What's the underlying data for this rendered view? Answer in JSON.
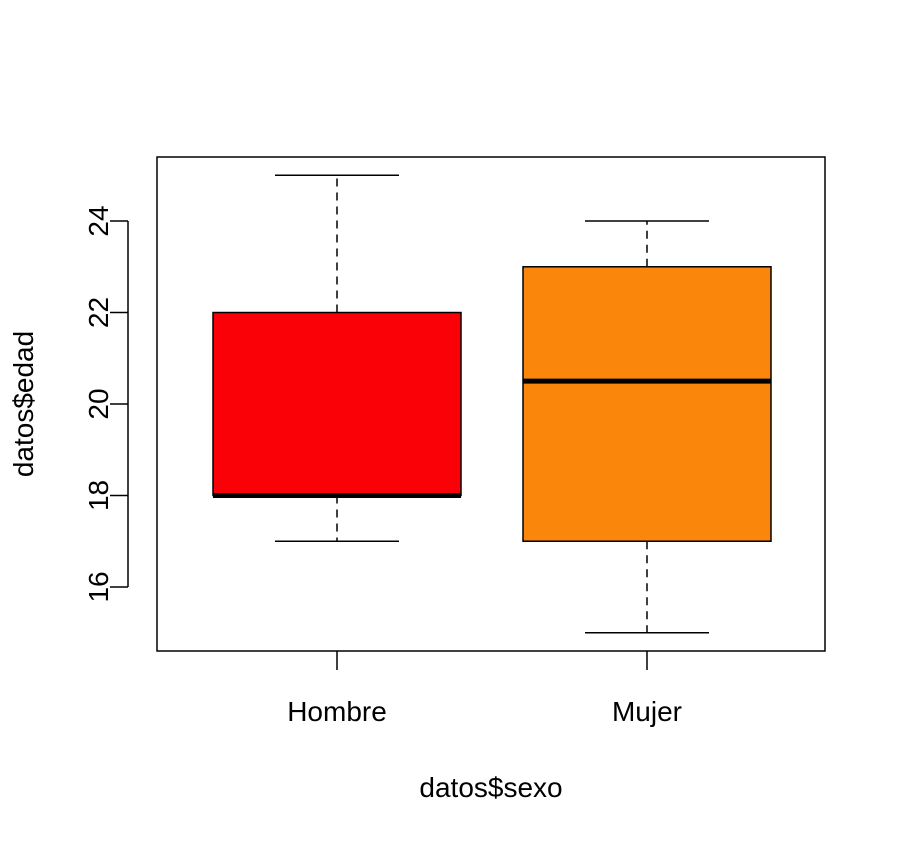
{
  "chart_data": {
    "type": "box",
    "title": "",
    "xlabel": "datos$sexo",
    "ylabel": "datos$edad",
    "ylim": [
      14.6,
      25.4
    ],
    "yticks": [
      16,
      18,
      20,
      22,
      24
    ],
    "grid": false,
    "legend": "none",
    "categories": [
      "Hombre",
      "Mujer"
    ],
    "boxes": [
      {
        "category": "Hombre",
        "min": 17,
        "q1": 18,
        "median": 18,
        "q3": 22,
        "max": 25,
        "color": "#FA0007"
      },
      {
        "category": "Mujer",
        "min": 15,
        "q1": 17,
        "median": 20.5,
        "q3": 23,
        "max": 24,
        "color": "#FB860C"
      }
    ]
  }
}
